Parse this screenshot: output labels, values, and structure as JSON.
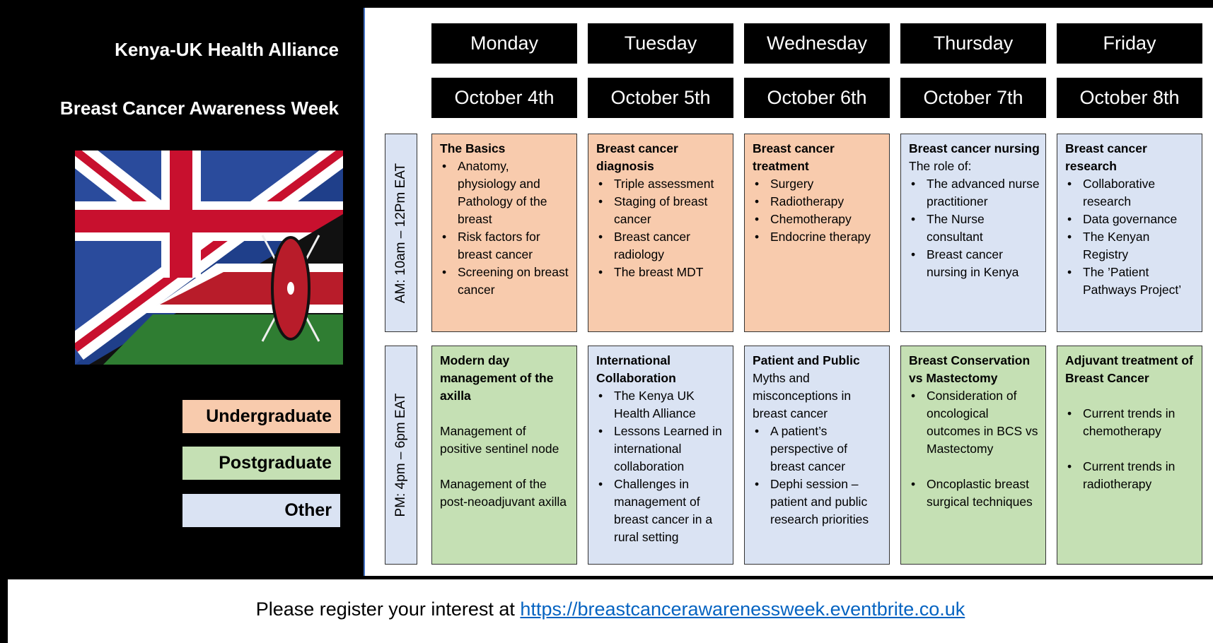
{
  "header": {
    "org": "Kenya-UK Health Alliance",
    "title": "Breast Cancer Awareness Week"
  },
  "legend": [
    "Undergraduate",
    "Postgraduate",
    "Other"
  ],
  "days": [
    {
      "day": "Monday",
      "date": "October 4th"
    },
    {
      "day": "Tuesday",
      "date": "October 5th"
    },
    {
      "day": "Wednesday",
      "date": "October 6th"
    },
    {
      "day": "Thursday",
      "date": "October 7th"
    },
    {
      "day": "Friday",
      "date": "October 8th"
    }
  ],
  "slots": [
    {
      "label": "AM: 10am – 12Pm EAT",
      "sessions": [
        {
          "kind": 0,
          "blocks": [
            [
              {
                "h": "The Basics"
              },
              {
                "li": "Anatomy, physiology and Pathology of the breast"
              },
              {
                "li": "Risk factors for breast cancer"
              },
              {
                "li": "Screening on breast cancer"
              }
            ]
          ]
        },
        {
          "kind": 0,
          "blocks": [
            [
              {
                "h": "Breast cancer diagnosis"
              },
              {
                "li": "Triple assessment"
              },
              {
                "li": "Staging of breast cancer"
              },
              {
                "li": "Breast cancer radiology"
              },
              {
                "li": "The breast MDT"
              }
            ]
          ]
        },
        {
          "kind": 0,
          "blocks": [
            [
              {
                "h": "Breast cancer treatment"
              },
              {
                "li": "Surgery"
              },
              {
                "li": "Radiotherapy"
              },
              {
                "li": "Chemotherapy"
              },
              {
                "li": "Endocrine therapy"
              }
            ]
          ]
        },
        {
          "kind": 2,
          "blocks": [
            [
              {
                "h": "Breast cancer nursing"
              },
              {
                "p": "The role of:"
              },
              {
                "li": "The advanced nurse practitioner"
              },
              {
                "li": "The Nurse consultant"
              },
              {
                "li": "Breast cancer nursing in Kenya"
              }
            ]
          ]
        },
        {
          "kind": 2,
          "blocks": [
            [
              {
                "h": "Breast cancer research"
              },
              {
                "li": "Collaborative research"
              },
              {
                "li": "Data governance"
              },
              {
                "li": "The Kenyan Registry"
              },
              {
                "li": "The ’Patient Pathways Project’"
              }
            ]
          ]
        }
      ]
    },
    {
      "label": "PM: 4pm – 6pm EAT",
      "sessions": [
        {
          "kind": 1,
          "blocks": [
            [
              {
                "h": "Modern day management of the axilla"
              }
            ],
            [
              {
                "p": "Management of positive sentinel node"
              }
            ],
            [
              {
                "p": "Management of the post-neoadjuvant axilla"
              }
            ]
          ]
        },
        {
          "kind": 2,
          "blocks": [
            [
              {
                "h": "International Collaboration"
              },
              {
                "li": "The Kenya UK Health Alliance"
              },
              {
                "li": "Lessons Learned in international collaboration"
              },
              {
                "li": "Challenges in management of breast cancer in a rural setting"
              }
            ]
          ]
        },
        {
          "kind": 2,
          "blocks": [
            [
              {
                "h": "Patient and Public"
              },
              {
                "p": "Myths and misconceptions in breast cancer"
              },
              {
                "li": "A patient’s perspective of breast cancer"
              },
              {
                "li": "Dephi session – patient and public research priorities"
              }
            ]
          ]
        },
        {
          "kind": 1,
          "blocks": [
            [
              {
                "h": "Breast Conservation vs Mastectomy"
              },
              {
                "li": "Consideration of oncological outcomes in BCS vs Mastectomy"
              }
            ],
            [
              {
                "li": "Oncoplastic breast surgical techniques"
              }
            ]
          ]
        },
        {
          "kind": 1,
          "blocks": [
            [
              {
                "h": "Adjuvant treatment of Breast Cancer"
              }
            ],
            [
              {
                "li": "Current trends in chemotherapy"
              }
            ],
            [
              {
                "li": "Current trends in radiotherapy"
              }
            ]
          ]
        }
      ]
    }
  ],
  "footer": {
    "text": "Please register your interest at",
    "link": "https://breastcancerawarenessweek.eventbrite.co.uk"
  }
}
